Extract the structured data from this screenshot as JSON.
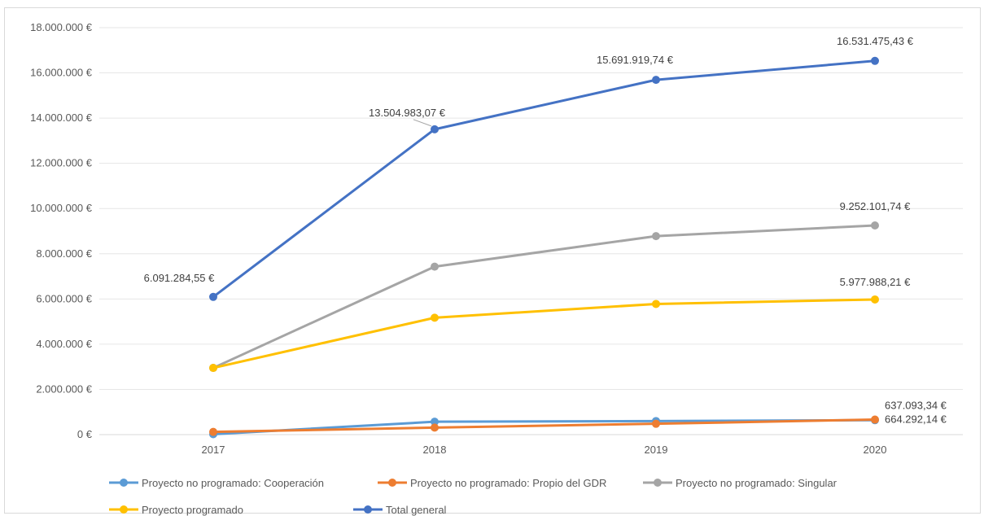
{
  "chart_data": {
    "type": "line",
    "title": "",
    "xlabel": "",
    "ylabel": "",
    "categories": [
      "2017",
      "2018",
      "2019",
      "2020"
    ],
    "ylim": [
      0,
      18000000
    ],
    "yticks": [
      0,
      2000000,
      4000000,
      6000000,
      8000000,
      10000000,
      12000000,
      14000000,
      16000000,
      18000000
    ],
    "ytick_labels": [
      "0 €",
      "2.000.000 €",
      "4.000.000 €",
      "6.000.000 €",
      "8.000.000 €",
      "10.000.000 €",
      "12.000.000 €",
      "14.000.000 €",
      "16.000.000 €",
      "18.000.000 €"
    ],
    "grid": true,
    "legend_position": "bottom",
    "series": [
      {
        "name": "Proyecto no programado: Cooperación",
        "color": "#5b9bd5",
        "values": [
          20000,
          570000,
          600000,
          637093.34
        ],
        "data_labels": [
          "",
          "",
          "",
          "637.093,34 €"
        ]
      },
      {
        "name": "Proyecto no programado: Propio del GDR",
        "color": "#ed7d31",
        "values": [
          120000,
          310000,
          480000,
          664292.14
        ],
        "data_labels": [
          "",
          "",
          "",
          "664.292,14 €"
        ]
      },
      {
        "name": "Proyecto no programado: Singular",
        "color": "#a5a5a5",
        "values": [
          2950000,
          7430000,
          8780000,
          9252101.74
        ],
        "data_labels": [
          "",
          "",
          "",
          "9.252.101,74 €"
        ]
      },
      {
        "name": "Proyecto programado",
        "color": "#ffc000",
        "values": [
          2950000,
          5170000,
          5780000,
          5977988.21
        ],
        "data_labels": [
          "",
          "",
          "",
          "5.977.988,21 €"
        ]
      },
      {
        "name": "Total general",
        "color": "#4472c4",
        "values": [
          6091284.55,
          13504983.07,
          15691919.74,
          16531475.43
        ],
        "data_labels": [
          "6.091.284,55 €",
          "13.504.983,07 €",
          "15.691.919,74 €",
          "16.531.475,43 €"
        ]
      }
    ]
  }
}
